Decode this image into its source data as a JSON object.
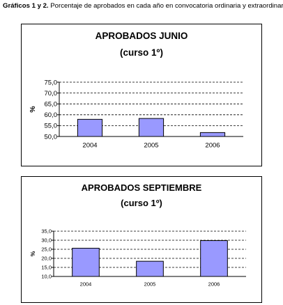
{
  "caption": {
    "bold": "Gráficos 1 y 2.",
    "text": " Porcentaje de aprobados en cada año en convocatoria ordinaria y extraordinaria"
  },
  "chart_data": [
    {
      "type": "bar",
      "title": "APROBADOS JUNIO",
      "subtitle": "(curso 1º)",
      "ylabel": "%",
      "xlabel": "",
      "categories": [
        "2004",
        "2005",
        "2006"
      ],
      "values": [
        57.9,
        58.3,
        51.8
      ],
      "ylim": [
        50,
        75
      ],
      "yticks": [
        "50,0",
        "55,0",
        "60,0",
        "65,0",
        "70,0",
        "75,0"
      ],
      "grid": true,
      "bar_color": "#9999ff"
    },
    {
      "type": "bar",
      "title": "APROBADOS SEPTIEMBRE",
      "subtitle": "(curso 1º)",
      "ylabel": "%",
      "xlabel": "",
      "categories": [
        "2004",
        "2005",
        "2006"
      ],
      "values": [
        25.6,
        18.4,
        29.8
      ],
      "ylim": [
        10,
        35
      ],
      "yticks": [
        "10,0",
        "15,0",
        "20,0",
        "25,0",
        "30,0",
        "35,0"
      ],
      "grid": true,
      "bar_color": "#9999ff"
    }
  ]
}
